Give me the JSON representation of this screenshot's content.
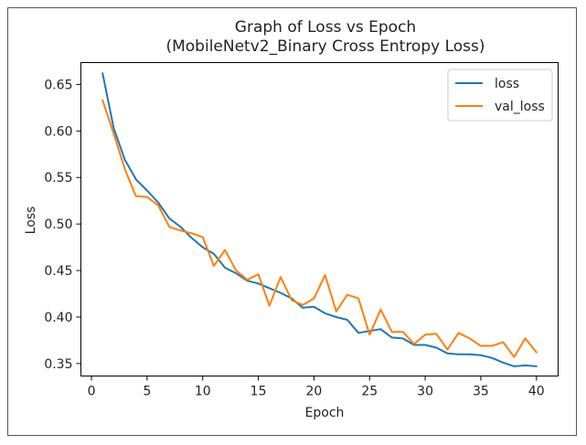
{
  "chart_data": {
    "type": "line",
    "title": "Graph of Loss vs Epoch",
    "subtitle": "(MobileNetv2_Binary Cross Entropy Loss)",
    "xlabel": "Epoch",
    "ylabel": "Loss",
    "xlim": [
      -0.95,
      41.95
    ],
    "ylim": [
      0.3366,
      0.6735
    ],
    "xticks": [
      0,
      5,
      10,
      15,
      20,
      25,
      30,
      35,
      40
    ],
    "yticks": [
      0.35,
      0.4,
      0.45,
      0.5,
      0.55,
      0.6,
      0.65
    ],
    "ytick_labels": [
      "0.35",
      "0.40",
      "0.45",
      "0.50",
      "0.55",
      "0.60",
      "0.65"
    ],
    "grid": false,
    "legend_position": "top-right",
    "x": [
      1,
      2,
      3,
      4,
      5,
      6,
      7,
      8,
      9,
      10,
      11,
      12,
      13,
      14,
      15,
      16,
      17,
      18,
      19,
      20,
      21,
      22,
      23,
      24,
      25,
      26,
      27,
      28,
      29,
      30,
      31,
      32,
      33,
      34,
      35,
      36,
      37,
      38,
      39,
      40
    ],
    "series": [
      {
        "name": "loss",
        "color": "#1f77b4",
        "values": [
          0.662,
          0.603,
          0.569,
          0.548,
          0.536,
          0.523,
          0.506,
          0.497,
          0.485,
          0.475,
          0.468,
          0.453,
          0.447,
          0.439,
          0.436,
          0.431,
          0.426,
          0.42,
          0.41,
          0.411,
          0.404,
          0.4,
          0.397,
          0.383,
          0.385,
          0.387,
          0.378,
          0.377,
          0.37,
          0.37,
          0.367,
          0.361,
          0.36,
          0.36,
          0.359,
          0.356,
          0.351,
          0.347,
          0.348,
          0.347
        ]
      },
      {
        "name": "val_loss",
        "color": "#ff7f0e",
        "values": [
          0.633,
          0.597,
          0.559,
          0.53,
          0.529,
          0.52,
          0.497,
          0.493,
          0.49,
          0.486,
          0.455,
          0.472,
          0.45,
          0.44,
          0.446,
          0.412,
          0.443,
          0.418,
          0.413,
          0.42,
          0.445,
          0.406,
          0.424,
          0.42,
          0.381,
          0.408,
          0.384,
          0.384,
          0.371,
          0.381,
          0.382,
          0.365,
          0.383,
          0.377,
          0.369,
          0.369,
          0.373,
          0.357,
          0.377,
          0.362
        ]
      }
    ]
  }
}
